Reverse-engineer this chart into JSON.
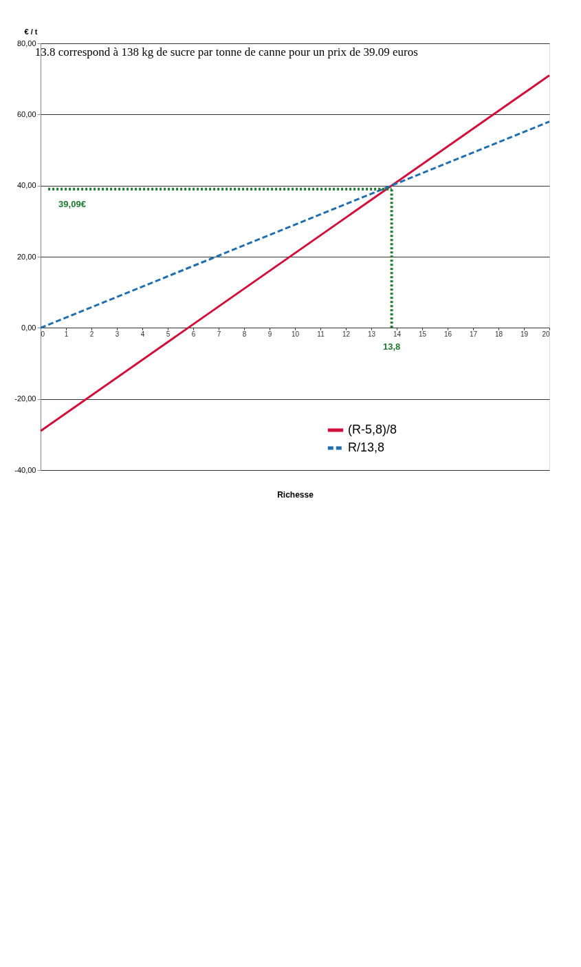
{
  "chart_data": {
    "type": "line",
    "title": "13.8 correspond à 138 kg de sucre par tonne de canne pour un prix de 39.09 euros",
    "xlabel": "Richesse",
    "ylabel": "€ / t",
    "xlim": [
      0,
      20
    ],
    "xticks": [
      0,
      1,
      2,
      3,
      4,
      5,
      6,
      7,
      8,
      9,
      10,
      11,
      12,
      13,
      14,
      15,
      16,
      17,
      18,
      19,
      20
    ],
    "ylim": [
      -40,
      80
    ],
    "yticks": [
      {
        "value": -40,
        "label": "-40,00"
      },
      {
        "value": -20,
        "label": "-20,00"
      },
      {
        "value": 0,
        "label": "0,00"
      },
      {
        "value": 20,
        "label": "20,00"
      },
      {
        "value": 40,
        "label": "40,00"
      },
      {
        "value": 60,
        "label": "60,00"
      },
      {
        "value": 80,
        "label": "80,00"
      }
    ],
    "grid": "y",
    "legend": "bottom",
    "marker": "none",
    "series": [
      {
        "name": "(R-5,8)/8",
        "color": "#d0103a",
        "x": [
          0,
          20
        ],
        "values": [
          -29,
          71
        ],
        "line_style": "solid"
      },
      {
        "name": "R/13,8",
        "color": "#1f6fb0",
        "x": [
          0,
          20
        ],
        "values": [
          0,
          58
        ],
        "line_style": "dashed"
      },
      {
        "color": "#1e7a2e",
        "x": [
          0.3,
          13.8
        ],
        "values": [
          39,
          39
        ],
        "line_style": "dotted"
      },
      {
        "color": "#1e7a2e",
        "x": [
          13.8,
          13.8
        ],
        "values": [
          0,
          39
        ],
        "line_style": "dotted"
      }
    ],
    "annotations": [
      {
        "text": "39,09€",
        "x": 0.3,
        "y": 39
      },
      {
        "text": "13,8",
        "x": 13.8,
        "y": 0
      }
    ]
  }
}
